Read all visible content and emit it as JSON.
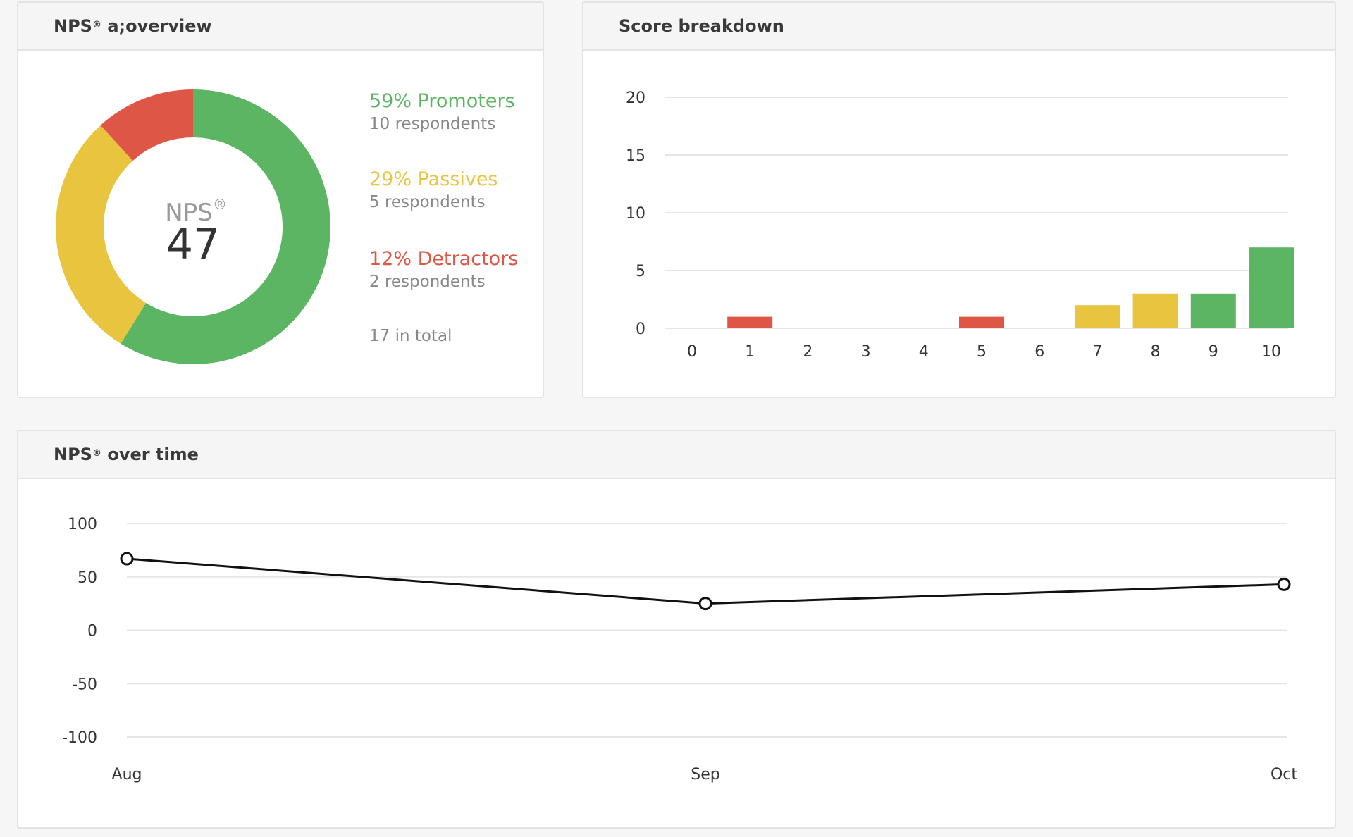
{
  "colors": {
    "promoters": "#5cb562",
    "passives": "#e9c43f",
    "detractors": "#de5645",
    "line": "#111111",
    "grid": "#e6e6e6"
  },
  "overview": {
    "title": "NPS",
    "title_suffix": "overview",
    "reg_mark": "®",
    "center_label": "NPS",
    "score": "47",
    "promoters": {
      "pct": "59% Promoters",
      "respondents": "10 respondents"
    },
    "passives": {
      "pct": "29% Passives",
      "respondents": "5 respondents"
    },
    "detractors": {
      "pct": "12% Detractors",
      "respondents": "2 respondents"
    },
    "total": "17 in total"
  },
  "breakdown": {
    "title": "Score breakdown"
  },
  "overtime": {
    "title": "NPS",
    "title_suffix": "over time",
    "reg_mark": "®"
  },
  "chart_data": [
    {
      "type": "pie",
      "categories": [
        "Promoters",
        "Passives",
        "Detractors"
      ],
      "values": [
        10,
        5,
        2
      ],
      "center_text": "47"
    },
    {
      "type": "bar",
      "categories": [
        "0",
        "1",
        "2",
        "3",
        "4",
        "5",
        "6",
        "7",
        "8",
        "9",
        "10"
      ],
      "values": [
        0,
        1,
        0,
        0,
        0,
        1,
        0,
        2,
        3,
        3,
        7
      ],
      "bar_groups": [
        "detractors",
        "detractors",
        "detractors",
        "detractors",
        "detractors",
        "detractors",
        "detractors",
        "passives",
        "passives",
        "promoters",
        "promoters"
      ],
      "yticks": [
        0,
        5,
        10,
        15,
        20
      ],
      "ylim": [
        0,
        20
      ],
      "grid": true
    },
    {
      "type": "line",
      "x": [
        "Aug",
        "Sep",
        "Oct"
      ],
      "values": [
        67,
        25,
        43
      ],
      "yticks": [
        100,
        50,
        0,
        -50,
        -100
      ],
      "ylim": [
        -100,
        100
      ],
      "grid": true
    }
  ]
}
